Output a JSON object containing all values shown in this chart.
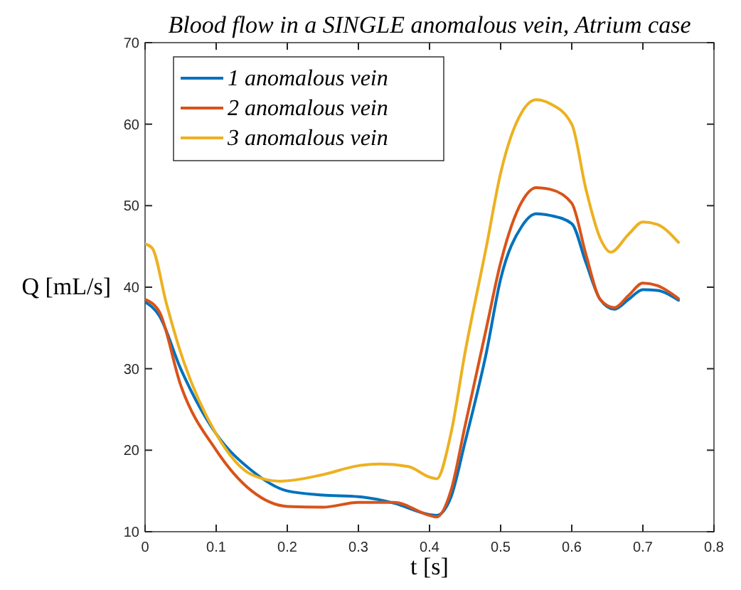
{
  "chart_data": {
    "type": "line",
    "title": "Blood flow in a SINGLE anomalous vein, Atrium case",
    "xlabel": "t [s]",
    "ylabel": "Q [mL/s]",
    "xlim": [
      0,
      0.8
    ],
    "xticks": [
      0,
      0.1,
      0.2,
      0.3,
      0.4,
      0.5,
      0.6,
      0.7,
      0.8
    ],
    "ylim": [
      10,
      70
    ],
    "yticks": [
      10,
      20,
      30,
      40,
      50,
      60,
      70
    ],
    "grid": false,
    "legend": "top left",
    "marker": "none",
    "line_style": "solid",
    "x": [
      0,
      0.02,
      0.05,
      0.1,
      0.15,
      0.2,
      0.25,
      0.3,
      0.35,
      0.4,
      0.41,
      0.43,
      0.45,
      0.48,
      0.5,
      0.53,
      0.55,
      0.57,
      0.6,
      0.62,
      0.64,
      0.66,
      0.68,
      0.7,
      0.72,
      0.75
    ],
    "series": [
      {
        "name": "1 anomalous vein",
        "color": "#0072bd",
        "values": [
          38.2,
          36.5,
          30,
          22,
          17.5,
          15,
          14.5,
          14.3,
          13.5,
          12.1,
          12,
          14.2,
          21,
          32,
          41,
          47.5,
          49,
          48.8,
          47.8,
          43,
          38.5,
          37.3,
          38.5,
          39.7,
          39.6,
          38.4
        ]
      },
      {
        "name": "2 anomalous vein",
        "color": "#d95319",
        "values": [
          38.5,
          37,
          28,
          20,
          15,
          13.1,
          13,
          13.6,
          13.6,
          12,
          11.8,
          15,
          23,
          35,
          43,
          50.5,
          52.2,
          52,
          50.3,
          44,
          38.5,
          37.5,
          39,
          40.5,
          40.2,
          38.6
        ]
      },
      {
        "name": "3 anomalous vein",
        "color": "#edb120",
        "x": [
          0,
          0.01,
          0.03,
          0.05,
          0.1,
          0.15,
          0.19,
          0.25,
          0.3,
          0.33,
          0.37,
          0.4,
          0.41,
          0.43,
          0.45,
          0.48,
          0.5,
          0.53,
          0.55,
          0.57,
          0.6,
          0.62,
          0.64,
          0.655,
          0.68,
          0.7,
          0.72,
          0.75
        ],
        "values": [
          45.3,
          44.8,
          38,
          32,
          22,
          17,
          16.2,
          17,
          18.1,
          18.3,
          18,
          16.7,
          16.5,
          22,
          32,
          45,
          54,
          61.5,
          63,
          62.5,
          60,
          52,
          46,
          44.3,
          46.5,
          48,
          47.7,
          45.5
        ]
      }
    ]
  }
}
